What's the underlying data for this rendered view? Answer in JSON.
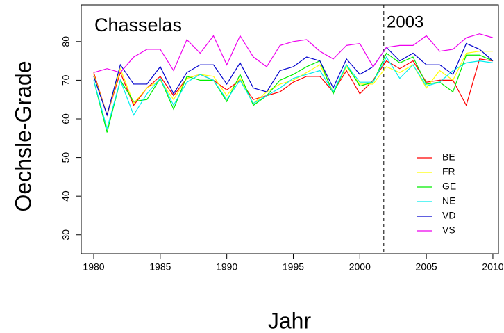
{
  "chart_data": {
    "type": "line",
    "title": "Chasselas",
    "x_label": "Jahr",
    "y_label": "Oechsle-Grade",
    "annotation": {
      "text": "2003",
      "x": 2001.8
    },
    "x": [
      1980,
      1981,
      1982,
      1983,
      1984,
      1985,
      1986,
      1987,
      1988,
      1989,
      1990,
      1991,
      1992,
      1993,
      1994,
      1995,
      1996,
      1997,
      1998,
      1999,
      2000,
      2001,
      2002,
      2003,
      2004,
      2005,
      2006,
      2007,
      2008,
      2009,
      2010
    ],
    "series": [
      {
        "name": "BE",
        "color": "#ff0000",
        "values": [
          72,
          61,
          72,
          63.5,
          68,
          71,
          66,
          70.5,
          71.5,
          70,
          67.5,
          70,
          65,
          66,
          67,
          69.5,
          71,
          71,
          67,
          72.5,
          66.5,
          70,
          75,
          73,
          75,
          69.5,
          70,
          70,
          63.5,
          75.5,
          75
        ]
      },
      {
        "name": "FR",
        "color": "#ffff00",
        "values": [
          71.5,
          61,
          73,
          64,
          68,
          70,
          65,
          70.5,
          71.5,
          71,
          66,
          70.5,
          64,
          67,
          69,
          70,
          72,
          74,
          67,
          73.5,
          69,
          69,
          73.5,
          72,
          74,
          68,
          72.5,
          70,
          77,
          77.5,
          77.5
        ]
      },
      {
        "name": "GE",
        "color": "#00ee00",
        "values": [
          70,
          56.5,
          70,
          64.5,
          65,
          70.5,
          62.5,
          71,
          70,
          70,
          64.5,
          71.5,
          63.5,
          66,
          70,
          71.5,
          73.5,
          75,
          66.5,
          74,
          68.5,
          69.5,
          77,
          74.5,
          76,
          69,
          69.5,
          67,
          76.5,
          76.5,
          75
        ]
      },
      {
        "name": "NE",
        "color": "#00eeee",
        "values": [
          70,
          57.5,
          70,
          61,
          66.5,
          70.5,
          63.5,
          69.5,
          71.5,
          70,
          65,
          70,
          64,
          66,
          68,
          70.5,
          71.5,
          72.5,
          67,
          74,
          69.5,
          69.5,
          76,
          70.5,
          74,
          68.5,
          69.5,
          72.5,
          74.5,
          75,
          74.5
        ]
      },
      {
        "name": "VD",
        "color": "#0000cd",
        "values": [
          71,
          61,
          74,
          69,
          69,
          73.5,
          66.5,
          72,
          74,
          74,
          69,
          74.5,
          68,
          67,
          72.5,
          73.5,
          76,
          75,
          68,
          75.5,
          71.5,
          73.5,
          78.5,
          75,
          77,
          74,
          74,
          71.5,
          79.5,
          78,
          75
        ]
      },
      {
        "name": "VS",
        "color": "#ee00ee",
        "values": [
          72,
          73,
          72,
          76,
          78,
          78,
          72.5,
          80.5,
          77,
          81.5,
          74,
          81.5,
          76,
          73.5,
          79,
          80,
          80.5,
          77.5,
          75.5,
          79,
          79.5,
          73.5,
          78.5,
          79,
          79,
          81.5,
          77.5,
          78,
          81,
          82,
          81
        ]
      }
    ],
    "xlim": [
      1979.06,
      2010.42
    ],
    "xticks": [
      1980,
      1985,
      1990,
      1995,
      2000,
      2005,
      2010
    ],
    "ylim": [
      25.1,
      89.5
    ],
    "yticks": [
      30,
      40,
      50,
      60,
      70,
      80
    ],
    "legend": "bottom-right"
  }
}
